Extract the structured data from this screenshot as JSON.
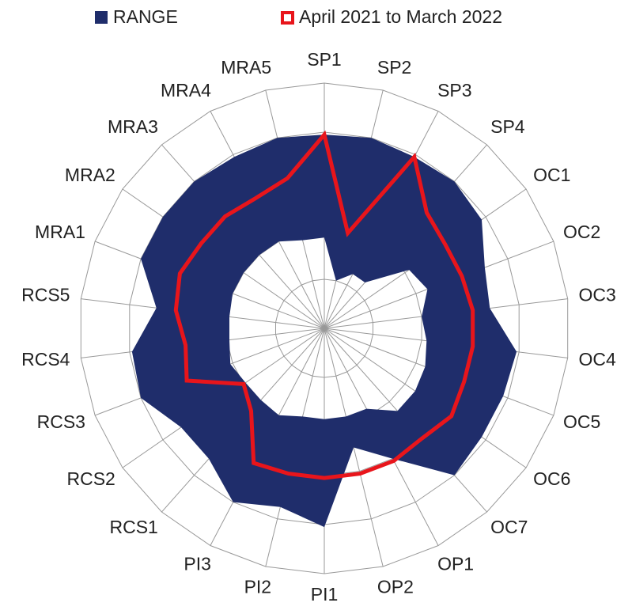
{
  "chart_data": {
    "type": "radar",
    "categories": [
      "SP1",
      "SP2",
      "SP3",
      "SP4",
      "OC1",
      "OC2",
      "OC3",
      "OC4",
      "OC5",
      "OC6",
      "OC7",
      "OP1",
      "OP2",
      "PI1",
      "PI2",
      "PI3",
      "RCS1",
      "RCS2",
      "RCS3",
      "RCS4",
      "RCS5",
      "MRA1",
      "MRA2",
      "MRA3",
      "MRA4",
      "MRA5"
    ],
    "series": [
      {
        "name": "RANGE",
        "color": "#1f2d6b",
        "style": "range",
        "values": [
          79,
          80,
          79,
          80,
          78,
          70,
          68,
          79,
          78,
          78,
          80,
          60,
          50,
          81,
          75,
          80,
          71,
          71,
          80,
          79,
          69,
          80,
          80,
          80,
          79,
          80
        ],
        "low": [
          37,
          20,
          25,
          25,
          42,
          45,
          40,
          42,
          44,
          45,
          45,
          37,
          37,
          37,
          37,
          40,
          39,
          39,
          41,
          39,
          39,
          40,
          40,
          40,
          40,
          37
        ]
      },
      {
        "name": "April 2021 to March 2022",
        "color": "#e8151b",
        "style": "line",
        "values": [
          79,
          40,
          79,
          63,
          60,
          60,
          61,
          61,
          61,
          63,
          60,
          61,
          61,
          61,
          61,
          62,
          45,
          40,
          60,
          57,
          61,
          63,
          61,
          61,
          60,
          63
        ]
      }
    ],
    "ylim": [
      0,
      100
    ],
    "yticks": [
      0,
      20,
      40,
      60,
      80,
      100
    ],
    "grid": true,
    "legend": "top"
  }
}
